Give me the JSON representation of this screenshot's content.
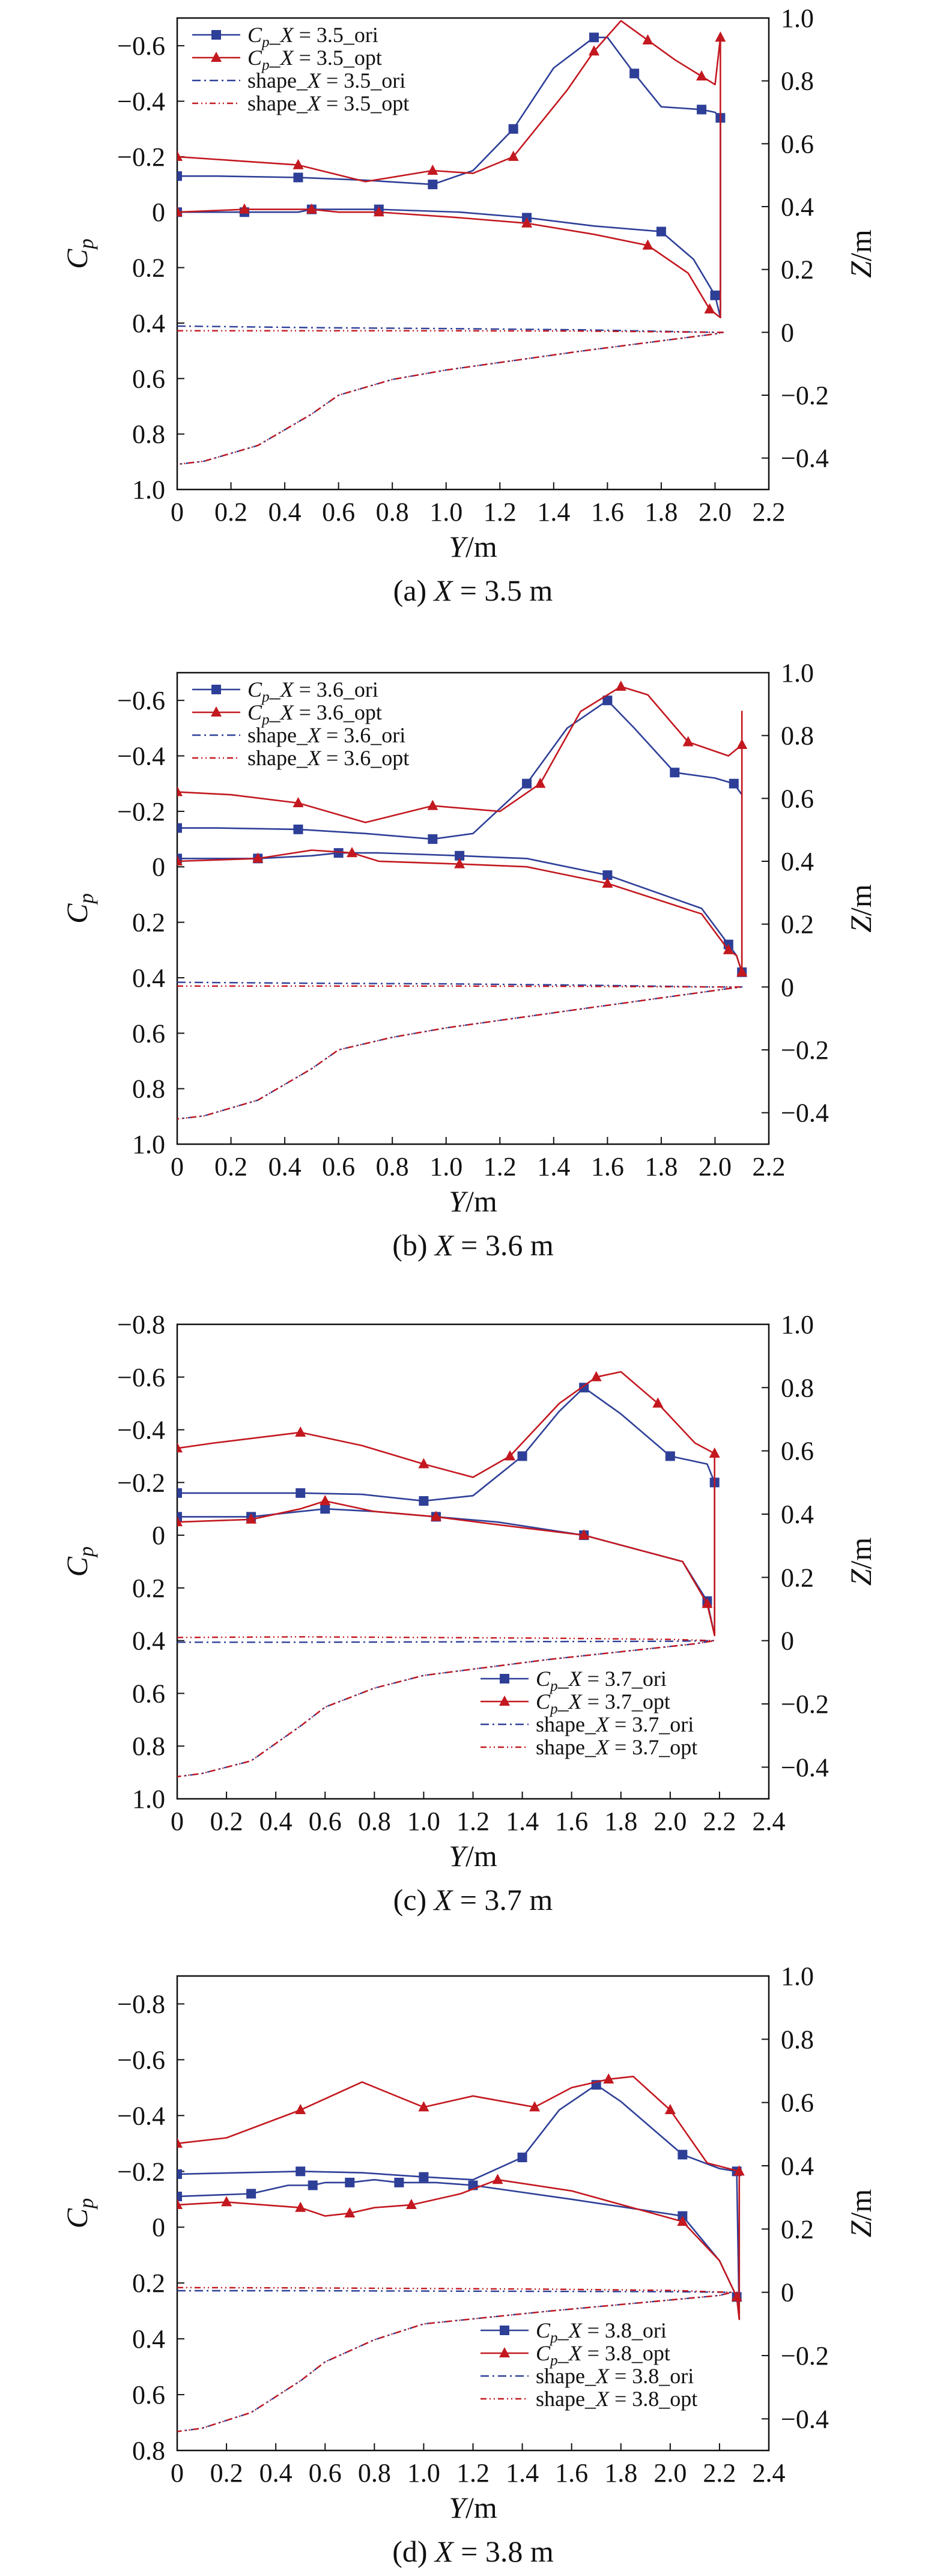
{
  "colors": {
    "ori": "#2E3F98",
    "opt": "#C3181F",
    "axis": "#111111"
  },
  "chart_data": [
    {
      "type": "line",
      "caption": "(a) X = 3.5 m",
      "xlabel": "Y/m",
      "ylabel": "C_p",
      "y2label": "Z/m",
      "xlim": [
        0,
        2.2
      ],
      "xticks": [
        0,
        0.2,
        0.4,
        0.6,
        0.8,
        1.0,
        1.2,
        1.4,
        1.6,
        1.8,
        2.0,
        2.2
      ],
      "ylim": [
        -0.7,
        1.0
      ],
      "yticks": [
        -0.6,
        -0.4,
        -0.2,
        0,
        0.2,
        0.4,
        0.6,
        0.8,
        1.0
      ],
      "y_inverted": true,
      "y2lim": [
        -0.5,
        1.0
      ],
      "y2ticks": [
        -0.4,
        -0.2,
        0,
        0.2,
        0.4,
        0.6,
        0.8,
        1.0
      ],
      "legend_position": "top-left",
      "legend": [
        "C_p_X = 3.5_ori",
        "C_p_X = 3.5_opt",
        "shape_X = 3.5_ori",
        "shape_X = 3.5_opt"
      ],
      "series": [
        {
          "name": "C_p_X = 3.5_ori",
          "axis": "left",
          "style": "ori",
          "marker": "square",
          "x": [
            0,
            0.15,
            0.45,
            0.7,
            0.95,
            1.1,
            1.25,
            1.4,
            1.55,
            1.6,
            1.7,
            1.8,
            1.95,
            2.0,
            2.02,
            2.02,
            2.0,
            1.92,
            1.8,
            1.55,
            1.3,
            1.05,
            0.75,
            0.6,
            0.5,
            0.45,
            0.25,
            0
          ],
          "y": [
            -0.13,
            -0.13,
            -0.125,
            -0.115,
            -0.1,
            -0.15,
            -0.3,
            -0.52,
            -0.63,
            -0.63,
            -0.5,
            -0.38,
            -0.37,
            -0.36,
            -0.34,
            0.38,
            0.3,
            0.17,
            0.07,
            0.05,
            0.02,
            0.0,
            -0.01,
            -0.01,
            -0.01,
            0.0,
            0.0,
            0.0
          ]
        },
        {
          "name": "C_p_X = 3.5_opt",
          "axis": "left",
          "style": "opt",
          "marker": "triangle",
          "x": [
            0,
            0.15,
            0.45,
            0.7,
            0.95,
            1.1,
            1.25,
            1.45,
            1.55,
            1.65,
            1.75,
            1.85,
            1.95,
            2.0,
            2.02,
            2.02,
            1.98,
            1.9,
            1.75,
            1.55,
            1.3,
            1.05,
            0.75,
            0.6,
            0.5,
            0.45,
            0.25,
            0
          ],
          "y": [
            -0.2,
            -0.19,
            -0.17,
            -0.11,
            -0.15,
            -0.14,
            -0.2,
            -0.44,
            -0.58,
            -0.69,
            -0.62,
            -0.55,
            -0.49,
            -0.46,
            -0.63,
            0.38,
            0.35,
            0.22,
            0.12,
            0.08,
            0.04,
            0.02,
            0.0,
            0.0,
            -0.01,
            -0.01,
            -0.01,
            0.0
          ]
        },
        {
          "name": "shape_X = 3.5_ori",
          "axis": "right",
          "style": "ori",
          "dash": "dashdot",
          "x": [
            0,
            0.5,
            1.0,
            1.5,
            2.0,
            2.03,
            2.0,
            1.5,
            1.0,
            0.8,
            0.6,
            0.5,
            0.3,
            0.1,
            0
          ],
          "y": [
            0.02,
            0.015,
            0.012,
            0.008,
            0.0,
            0.0,
            -0.005,
            -0.06,
            -0.12,
            -0.15,
            -0.2,
            -0.26,
            -0.36,
            -0.41,
            -0.42
          ]
        },
        {
          "name": "shape_X = 3.5_opt",
          "axis": "right",
          "style": "opt",
          "dash": "dashdot2",
          "x": [
            0,
            0.5,
            1.0,
            1.5,
            2.0,
            2.03,
            2.0,
            1.5,
            1.0,
            0.8,
            0.6,
            0.5,
            0.3,
            0.1,
            0
          ],
          "y": [
            0.005,
            0.005,
            0.005,
            0.004,
            0.0,
            0.0,
            -0.005,
            -0.06,
            -0.12,
            -0.15,
            -0.2,
            -0.26,
            -0.36,
            -0.41,
            -0.42
          ]
        }
      ]
    },
    {
      "type": "line",
      "caption": "(b) X = 3.6 m",
      "xlabel": "Y/m",
      "ylabel": "C_p",
      "y2label": "Z/m",
      "xlim": [
        0,
        2.2
      ],
      "xticks": [
        0,
        0.2,
        0.4,
        0.6,
        0.8,
        1.0,
        1.2,
        1.4,
        1.6,
        1.8,
        2.0,
        2.2
      ],
      "ylim": [
        -0.7,
        1.0
      ],
      "yticks": [
        -0.6,
        -0.4,
        -0.2,
        0,
        0.2,
        0.4,
        0.6,
        0.8,
        1.0
      ],
      "y_inverted": true,
      "y2lim": [
        -0.5,
        1.0
      ],
      "y2ticks": [
        -0.4,
        -0.2,
        0,
        0.2,
        0.4,
        0.6,
        0.8,
        1.0
      ],
      "legend_position": "top-left",
      "legend": [
        "C_p_X = 3.6_ori",
        "C_p_X = 3.6_opt",
        "shape_X = 3.6_ori",
        "shape_X = 3.6_opt"
      ],
      "series": [
        {
          "name": "C_p_X = 3.6_ori",
          "axis": "left",
          "style": "ori",
          "marker": "square",
          "x": [
            0,
            0.15,
            0.45,
            0.7,
            0.95,
            1.1,
            1.3,
            1.45,
            1.6,
            1.7,
            1.85,
            2.0,
            2.07,
            2.1,
            2.1,
            2.08,
            2.05,
            1.95,
            1.6,
            1.3,
            1.05,
            0.75,
            0.6,
            0.5,
            0.3,
            0
          ],
          "y": [
            -0.14,
            -0.14,
            -0.135,
            -0.12,
            -0.1,
            -0.12,
            -0.3,
            -0.5,
            -0.6,
            -0.5,
            -0.34,
            -0.32,
            -0.3,
            -0.26,
            0.38,
            0.32,
            0.28,
            0.15,
            0.03,
            -0.03,
            -0.04,
            -0.05,
            -0.05,
            -0.04,
            -0.03,
            -0.03
          ]
        },
        {
          "name": "C_p_X = 3.6_opt",
          "axis": "left",
          "style": "opt",
          "marker": "triangle",
          "x": [
            0,
            0.2,
            0.45,
            0.7,
            0.95,
            1.2,
            1.35,
            1.5,
            1.65,
            1.75,
            1.9,
            2.05,
            2.1,
            2.1,
            2.1,
            2.08,
            2.05,
            1.95,
            1.6,
            1.3,
            1.05,
            0.75,
            0.65,
            0.5,
            0.3,
            0
          ],
          "y": [
            -0.27,
            -0.26,
            -0.23,
            -0.16,
            -0.22,
            -0.2,
            -0.3,
            -0.56,
            -0.65,
            -0.62,
            -0.45,
            -0.4,
            -0.44,
            -0.56,
            0.38,
            0.32,
            0.3,
            0.17,
            0.06,
            0.0,
            -0.01,
            -0.02,
            -0.05,
            -0.06,
            -0.03,
            -0.02
          ]
        },
        {
          "name": "shape_X = 3.6_ori",
          "axis": "right",
          "style": "ori",
          "dash": "dashdot",
          "x": [
            0,
            0.5,
            1.0,
            1.5,
            2.0,
            2.1,
            2.05,
            1.5,
            1.0,
            0.8,
            0.6,
            0.5,
            0.3,
            0.1,
            0
          ],
          "y": [
            0.015,
            0.012,
            0.01,
            0.006,
            0.0,
            0.0,
            -0.005,
            -0.07,
            -0.13,
            -0.16,
            -0.2,
            -0.26,
            -0.36,
            -0.41,
            -0.42
          ]
        },
        {
          "name": "shape_X = 3.6_opt",
          "axis": "right",
          "style": "opt",
          "dash": "dashdot2",
          "x": [
            0,
            0.5,
            1.0,
            1.5,
            2.0,
            2.1,
            2.05,
            1.5,
            1.0,
            0.8,
            0.6,
            0.5,
            0.3,
            0.1,
            0
          ],
          "y": [
            0.003,
            0.003,
            0.003,
            0.002,
            0.0,
            0.0,
            -0.005,
            -0.07,
            -0.13,
            -0.16,
            -0.2,
            -0.26,
            -0.36,
            -0.41,
            -0.42
          ]
        }
      ]
    },
    {
      "type": "line",
      "caption": "(c) X = 3.7 m",
      "xlabel": "Y/m",
      "ylabel": "C_p",
      "y2label": "Z/m",
      "xlim": [
        0,
        2.4
      ],
      "xticks": [
        0,
        0.2,
        0.4,
        0.6,
        0.8,
        1.0,
        1.2,
        1.4,
        1.6,
        1.8,
        2.0,
        2.2,
        2.4
      ],
      "ylim": [
        -0.8,
        1.0
      ],
      "yticks": [
        -0.8,
        -0.6,
        -0.4,
        -0.2,
        0,
        0.2,
        0.4,
        0.6,
        0.8,
        1.0
      ],
      "y_inverted": true,
      "y2lim": [
        -0.5,
        1.0
      ],
      "y2ticks": [
        -0.4,
        -0.2,
        0,
        0.2,
        0.4,
        0.6,
        0.8,
        1.0
      ],
      "legend_position": "bottom-right",
      "legend": [
        "C_p_X = 3.7_ori",
        "C_p_X = 3.7_opt",
        "shape_X = 3.7_ori",
        "shape_X = 3.7_opt"
      ],
      "series": [
        {
          "name": "C_p_X = 3.7_ori",
          "axis": "left",
          "style": "ori",
          "marker": "square",
          "x": [
            0,
            0.2,
            0.5,
            0.75,
            1.0,
            1.2,
            1.4,
            1.55,
            1.65,
            1.8,
            2.0,
            2.15,
            2.18,
            2.18,
            2.15,
            2.05,
            1.65,
            1.3,
            1.05,
            0.8,
            0.6,
            0.5,
            0.3,
            0
          ],
          "y": [
            -0.16,
            -0.16,
            -0.16,
            -0.155,
            -0.13,
            -0.15,
            -0.3,
            -0.47,
            -0.56,
            -0.46,
            -0.3,
            -0.27,
            -0.2,
            0.38,
            0.25,
            0.1,
            0.0,
            -0.05,
            -0.07,
            -0.09,
            -0.1,
            -0.09,
            -0.07,
            -0.07
          ]
        },
        {
          "name": "C_p_X = 3.7_opt",
          "axis": "left",
          "style": "opt",
          "marker": "triangle",
          "x": [
            0,
            0.15,
            0.5,
            0.75,
            1.0,
            1.2,
            1.35,
            1.55,
            1.7,
            1.8,
            1.95,
            2.1,
            2.18,
            2.18,
            2.15,
            2.05,
            1.65,
            1.3,
            1.05,
            0.8,
            0.6,
            0.5,
            0.3,
            0
          ],
          "y": [
            -0.33,
            -0.35,
            -0.39,
            -0.34,
            -0.27,
            -0.22,
            -0.3,
            -0.5,
            -0.6,
            -0.62,
            -0.5,
            -0.35,
            -0.31,
            0.38,
            0.26,
            0.1,
            0.0,
            -0.04,
            -0.07,
            -0.09,
            -0.13,
            -0.1,
            -0.06,
            -0.05
          ]
        },
        {
          "name": "shape_X = 3.7_ori",
          "axis": "right",
          "style": "ori",
          "dash": "dashdot",
          "x": [
            0,
            0.5,
            1.0,
            1.5,
            2.0,
            2.18,
            2.1,
            1.5,
            1.0,
            0.8,
            0.6,
            0.5,
            0.3,
            0.1,
            0
          ],
          "y": [
            -0.005,
            -0.005,
            -0.004,
            -0.003,
            -0.002,
            0.0,
            -0.01,
            -0.06,
            -0.11,
            -0.15,
            -0.21,
            -0.27,
            -0.38,
            -0.42,
            -0.43
          ]
        },
        {
          "name": "shape_X = 3.7_opt",
          "axis": "right",
          "style": "opt",
          "dash": "dashdot2",
          "x": [
            0,
            0.5,
            1.0,
            1.5,
            2.0,
            2.18,
            2.1,
            1.5,
            1.0,
            0.8,
            0.6,
            0.5,
            0.3,
            0.1,
            0
          ],
          "y": [
            0.01,
            0.012,
            0.01,
            0.008,
            0.004,
            0.0,
            -0.01,
            -0.06,
            -0.11,
            -0.15,
            -0.21,
            -0.27,
            -0.38,
            -0.42,
            -0.43
          ]
        }
      ]
    },
    {
      "type": "line",
      "caption": "(d) X = 3.8 m",
      "xlabel": "Y/m",
      "ylabel": "C_p",
      "y2label": "Z/m",
      "xlim": [
        0,
        2.4
      ],
      "xticks": [
        0,
        0.2,
        0.4,
        0.6,
        0.8,
        1.0,
        1.2,
        1.4,
        1.6,
        1.8,
        2.0,
        2.2,
        2.4
      ],
      "ylim": [
        -0.9,
        0.8
      ],
      "yticks": [
        -0.8,
        -0.6,
        -0.4,
        -0.2,
        0,
        0.2,
        0.4,
        0.6,
        0.8
      ],
      "y_inverted": true,
      "y2lim": [
        -0.5,
        1.0
      ],
      "y2ticks": [
        -0.4,
        -0.2,
        0,
        0.2,
        0.4,
        0.6,
        0.8,
        1.0
      ],
      "legend_position": "bottom-right",
      "legend": [
        "C_p_X = 3.8_ori",
        "C_p_X = 3.8_opt",
        "shape_X = 3.8_ori",
        "shape_X = 3.8_opt"
      ],
      "series": [
        {
          "name": "C_p_X = 3.8_ori",
          "axis": "left",
          "style": "ori",
          "marker": "square",
          "x": [
            0,
            0.25,
            0.5,
            0.75,
            1.0,
            1.2,
            1.4,
            1.55,
            1.7,
            1.8,
            2.05,
            2.2,
            2.27,
            2.28,
            2.27,
            2.2,
            2.05,
            1.6,
            1.2,
            1.05,
            0.9,
            0.8,
            0.7,
            0.6,
            0.55,
            0.45,
            0.3,
            0
          ],
          "y": [
            -0.19,
            -0.195,
            -0.2,
            -0.195,
            -0.18,
            -0.17,
            -0.25,
            -0.42,
            -0.51,
            -0.45,
            -0.26,
            -0.21,
            -0.2,
            0.33,
            0.25,
            0.12,
            -0.04,
            -0.1,
            -0.15,
            -0.16,
            -0.16,
            -0.17,
            -0.16,
            -0.16,
            -0.15,
            -0.15,
            -0.12,
            -0.11
          ]
        },
        {
          "name": "C_p_X = 3.8_opt",
          "axis": "left",
          "style": "opt",
          "marker": "triangle",
          "x": [
            0,
            0.2,
            0.5,
            0.75,
            1.0,
            1.2,
            1.45,
            1.6,
            1.75,
            1.85,
            2.0,
            2.15,
            2.28,
            2.28,
            2.27,
            2.2,
            2.05,
            1.6,
            1.3,
            1.15,
            0.95,
            0.8,
            0.7,
            0.6,
            0.5,
            0.35,
            0.2,
            0
          ],
          "y": [
            -0.3,
            -0.32,
            -0.42,
            -0.52,
            -0.43,
            -0.47,
            -0.43,
            -0.5,
            -0.53,
            -0.54,
            -0.42,
            -0.23,
            -0.2,
            0.33,
            0.25,
            0.12,
            -0.02,
            -0.13,
            -0.17,
            -0.12,
            -0.08,
            -0.07,
            -0.05,
            -0.04,
            -0.07,
            -0.08,
            -0.09,
            -0.08
          ]
        },
        {
          "name": "shape_X = 3.8_ori",
          "axis": "right",
          "style": "ori",
          "dash": "dashdot",
          "x": [
            0,
            0.5,
            1.0,
            1.5,
            2.0,
            2.25,
            2.2,
            1.5,
            1.0,
            0.8,
            0.6,
            0.5,
            0.3,
            0.1,
            0
          ],
          "y": [
            0.005,
            0.005,
            0.004,
            0.003,
            0.002,
            0.0,
            -0.01,
            -0.06,
            -0.1,
            -0.15,
            -0.22,
            -0.28,
            -0.38,
            -0.43,
            -0.44
          ]
        },
        {
          "name": "shape_X = 3.8_opt",
          "axis": "right",
          "style": "opt",
          "dash": "dashdot2",
          "x": [
            0,
            0.5,
            1.0,
            1.5,
            2.0,
            2.25,
            2.2,
            1.5,
            1.0,
            0.8,
            0.6,
            0.5,
            0.3,
            0.1,
            0
          ],
          "y": [
            0.015,
            0.014,
            0.012,
            0.01,
            0.006,
            0.0,
            -0.01,
            -0.06,
            -0.1,
            -0.15,
            -0.22,
            -0.28,
            -0.38,
            -0.43,
            -0.44
          ]
        }
      ]
    }
  ]
}
